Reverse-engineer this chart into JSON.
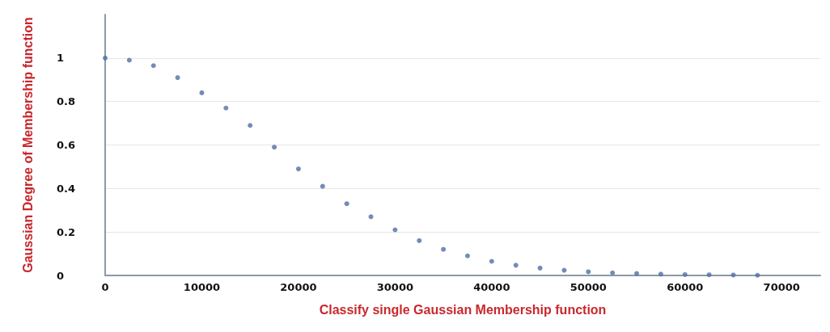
{
  "chart_data": {
    "type": "scatter",
    "xlabel": "Classify single Gaussian Membership function",
    "ylabel": "Gaussian Degree of Membership function",
    "x": [
      0,
      2500,
      5000,
      7500,
      10000,
      12500,
      15000,
      17500,
      20000,
      22500,
      25000,
      27500,
      30000,
      32500,
      35000,
      37500,
      40000,
      42500,
      45000,
      47500,
      50000,
      52500,
      55000,
      57500,
      60000,
      62500,
      65000,
      67500
    ],
    "values": [
      1.0,
      0.99,
      0.965,
      0.91,
      0.84,
      0.77,
      0.69,
      0.59,
      0.49,
      0.41,
      0.33,
      0.27,
      0.21,
      0.16,
      0.12,
      0.09,
      0.065,
      0.047,
      0.034,
      0.024,
      0.017,
      0.012,
      0.009,
      0.006,
      0.004,
      0.003,
      0.002,
      0.001
    ],
    "color": "#4f6fa8",
    "marker": "circle",
    "xlim": [
      0,
      74000
    ],
    "xticks": [
      0,
      10000,
      20000,
      30000,
      40000,
      50000,
      60000,
      70000
    ],
    "ylim": [
      0,
      1.2
    ],
    "yticks": [
      0,
      0.2,
      0.4,
      0.6,
      0.8,
      1
    ],
    "grid": "y"
  }
}
